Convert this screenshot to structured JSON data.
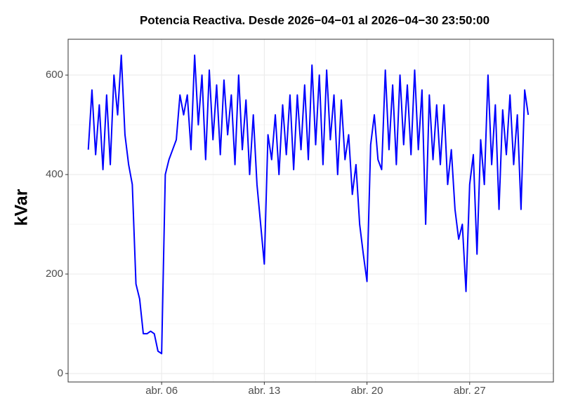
{
  "chart_data": {
    "type": "line",
    "title": "Potencia Reactiva. Desde  2026−04−01  al  2026−04−30 23:50:00",
    "ylabel": "kVar",
    "color": "#0000ff",
    "grid": true,
    "xlim": [
      "2026-03-30T15:00",
      "2026-05-02T17:00"
    ],
    "xticks": [
      {
        "value": "2026-04-06T00:00",
        "label": "abr. 06"
      },
      {
        "value": "2026-04-13T00:00",
        "label": "abr. 13"
      },
      {
        "value": "2026-04-20T00:00",
        "label": "abr. 20"
      },
      {
        "value": "2026-04-27T00:00",
        "label": "abr. 27"
      }
    ],
    "ylim": [
      -17,
      672
    ],
    "yticks": [
      0,
      200,
      400,
      600
    ],
    "x": [
      "2026-04-01T00:00",
      "2026-04-01T06:00",
      "2026-04-01T12:00",
      "2026-04-01T18:00",
      "2026-04-02T00:00",
      "2026-04-02T06:00",
      "2026-04-02T12:00",
      "2026-04-02T18:00",
      "2026-04-03T00:00",
      "2026-04-03T06:00",
      "2026-04-03T12:00",
      "2026-04-03T18:00",
      "2026-04-04T00:00",
      "2026-04-04T06:00",
      "2026-04-04T12:00",
      "2026-04-04T18:00",
      "2026-04-05T00:00",
      "2026-04-05T06:00",
      "2026-04-05T12:00",
      "2026-04-05T18:00",
      "2026-04-06T00:00",
      "2026-04-06T06:00",
      "2026-04-06T12:00",
      "2026-04-06T18:00",
      "2026-04-07T00:00",
      "2026-04-07T06:00",
      "2026-04-07T12:00",
      "2026-04-07T18:00",
      "2026-04-08T00:00",
      "2026-04-08T06:00",
      "2026-04-08T12:00",
      "2026-04-08T18:00",
      "2026-04-09T00:00",
      "2026-04-09T06:00",
      "2026-04-09T12:00",
      "2026-04-09T18:00",
      "2026-04-10T00:00",
      "2026-04-10T06:00",
      "2026-04-10T12:00",
      "2026-04-10T18:00",
      "2026-04-11T00:00",
      "2026-04-11T06:00",
      "2026-04-11T12:00",
      "2026-04-11T18:00",
      "2026-04-12T00:00",
      "2026-04-12T06:00",
      "2026-04-12T12:00",
      "2026-04-12T18:00",
      "2026-04-13T00:00",
      "2026-04-13T06:00",
      "2026-04-13T12:00",
      "2026-04-13T18:00",
      "2026-04-14T00:00",
      "2026-04-14T06:00",
      "2026-04-14T12:00",
      "2026-04-14T18:00",
      "2026-04-15T00:00",
      "2026-04-15T06:00",
      "2026-04-15T12:00",
      "2026-04-15T18:00",
      "2026-04-16T00:00",
      "2026-04-16T06:00",
      "2026-04-16T12:00",
      "2026-04-16T18:00",
      "2026-04-17T00:00",
      "2026-04-17T06:00",
      "2026-04-17T12:00",
      "2026-04-17T18:00",
      "2026-04-18T00:00",
      "2026-04-18T06:00",
      "2026-04-18T12:00",
      "2026-04-18T18:00",
      "2026-04-19T00:00",
      "2026-04-19T06:00",
      "2026-04-19T12:00",
      "2026-04-19T18:00",
      "2026-04-20T00:00",
      "2026-04-20T06:00",
      "2026-04-20T12:00",
      "2026-04-20T18:00",
      "2026-04-21T00:00",
      "2026-04-21T06:00",
      "2026-04-21T12:00",
      "2026-04-21T18:00",
      "2026-04-22T00:00",
      "2026-04-22T06:00",
      "2026-04-22T12:00",
      "2026-04-22T18:00",
      "2026-04-23T00:00",
      "2026-04-23T06:00",
      "2026-04-23T12:00",
      "2026-04-23T18:00",
      "2026-04-24T00:00",
      "2026-04-24T06:00",
      "2026-04-24T12:00",
      "2026-04-24T18:00",
      "2026-04-25T00:00",
      "2026-04-25T06:00",
      "2026-04-25T12:00",
      "2026-04-25T18:00",
      "2026-04-26T00:00",
      "2026-04-26T06:00",
      "2026-04-26T12:00",
      "2026-04-26T18:00",
      "2026-04-27T00:00",
      "2026-04-27T06:00",
      "2026-04-27T12:00",
      "2026-04-27T18:00",
      "2026-04-28T00:00",
      "2026-04-28T06:00",
      "2026-04-28T12:00",
      "2026-04-28T18:00",
      "2026-04-29T00:00",
      "2026-04-29T06:00",
      "2026-04-29T12:00",
      "2026-04-29T18:00",
      "2026-04-30T00:00",
      "2026-04-30T06:00",
      "2026-04-30T12:00",
      "2026-04-30T18:00",
      "2026-04-30T23:50"
    ],
    "values": [
      450,
      570,
      440,
      540,
      410,
      560,
      420,
      600,
      520,
      640,
      480,
      420,
      380,
      180,
      150,
      80,
      80,
      85,
      80,
      45,
      40,
      400,
      430,
      450,
      470,
      560,
      520,
      560,
      450,
      640,
      500,
      600,
      430,
      610,
      470,
      580,
      440,
      590,
      480,
      560,
      420,
      600,
      450,
      550,
      400,
      520,
      380,
      300,
      220,
      480,
      430,
      520,
      400,
      540,
      440,
      560,
      410,
      560,
      450,
      580,
      430,
      620,
      460,
      600,
      420,
      610,
      470,
      560,
      400,
      550,
      430,
      480,
      360,
      420,
      300,
      240,
      185,
      460,
      520,
      430,
      410,
      610,
      450,
      580,
      420,
      600,
      460,
      580,
      440,
      610,
      450,
      570,
      300,
      560,
      430,
      540,
      420,
      540,
      380,
      450,
      330,
      270,
      300,
      165,
      380,
      440,
      240,
      470,
      380,
      600,
      420,
      540,
      330,
      530,
      440,
      560,
      420,
      520,
      330,
      570,
      520
    ]
  }
}
